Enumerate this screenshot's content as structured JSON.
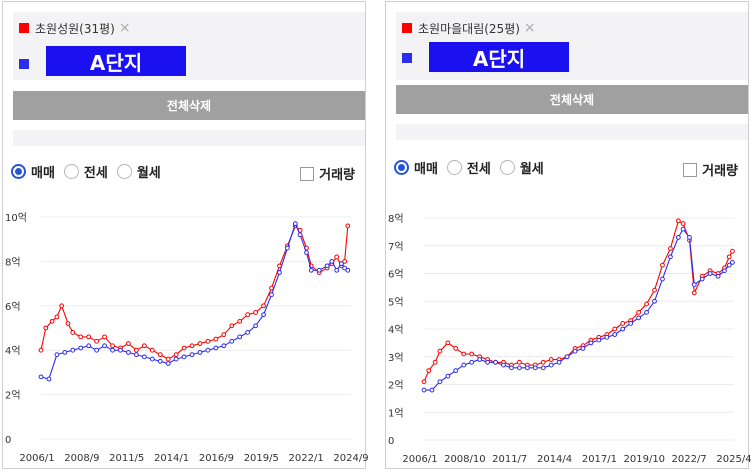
{
  "delete_all_label": "전체삭제",
  "remove_symbol": "×",
  "mask_label": "A단지",
  "radio_options": [
    "매매",
    "전세",
    "월세"
  ],
  "volume_label": "거래량",
  "colors": {
    "red": "#ff0000",
    "blue": "#2d2df0",
    "mask": "#1a10f0",
    "selected": "#2653d9"
  },
  "left": {
    "complex_name": "초원성원(31평)",
    "hidden_suffix": ")",
    "chart_data": {
      "type": "line",
      "y_ticks": [
        "0",
        "2억",
        "4억",
        "6억",
        "8억",
        "10억"
      ],
      "ylim": [
        0,
        10
      ],
      "x_ticks": [
        "2006/1",
        "2008/9",
        "2011/5",
        "2014/1",
        "2016/9",
        "2019/5",
        "2022/1",
        "2024/9"
      ],
      "xlim": [
        2006.0,
        2025.5
      ],
      "series": [
        {
          "name": "초원성원(31평)",
          "color": "#ff0000",
          "points": [
            [
              2006.0,
              4.0
            ],
            [
              2006.3,
              5.0
            ],
            [
              2006.7,
              5.3
            ],
            [
              2007.0,
              5.5
            ],
            [
              2007.3,
              6.0
            ],
            [
              2007.7,
              5.2
            ],
            [
              2008.0,
              4.8
            ],
            [
              2008.5,
              4.6
            ],
            [
              2009.0,
              4.6
            ],
            [
              2009.5,
              4.4
            ],
            [
              2010.0,
              4.6
            ],
            [
              2010.5,
              4.2
            ],
            [
              2011.0,
              4.1
            ],
            [
              2011.5,
              4.3
            ],
            [
              2012.0,
              4.0
            ],
            [
              2012.5,
              4.2
            ],
            [
              2013.0,
              4.0
            ],
            [
              2013.5,
              3.8
            ],
            [
              2014.0,
              3.6
            ],
            [
              2014.5,
              3.8
            ],
            [
              2015.0,
              4.1
            ],
            [
              2015.5,
              4.2
            ],
            [
              2016.0,
              4.3
            ],
            [
              2016.5,
              4.4
            ],
            [
              2017.0,
              4.5
            ],
            [
              2017.5,
              4.7
            ],
            [
              2018.0,
              5.1
            ],
            [
              2018.5,
              5.3
            ],
            [
              2019.0,
              5.6
            ],
            [
              2019.5,
              5.7
            ],
            [
              2020.0,
              6.0
            ],
            [
              2020.5,
              6.8
            ],
            [
              2021.0,
              7.8
            ],
            [
              2021.5,
              8.7
            ],
            [
              2022.0,
              9.6
            ],
            [
              2022.3,
              9.4
            ],
            [
              2022.7,
              8.6
            ],
            [
              2023.0,
              7.8
            ],
            [
              2023.5,
              7.5
            ],
            [
              2024.0,
              7.7
            ],
            [
              2024.3,
              7.9
            ],
            [
              2024.6,
              8.2
            ],
            [
              2024.9,
              7.8
            ],
            [
              2025.1,
              8.0
            ],
            [
              2025.3,
              9.6
            ]
          ]
        },
        {
          "name": "",
          "color": "#2d2df0",
          "points": [
            [
              2006.0,
              2.8
            ],
            [
              2006.5,
              2.7
            ],
            [
              2007.0,
              3.8
            ],
            [
              2007.5,
              3.9
            ],
            [
              2008.0,
              4.0
            ],
            [
              2008.5,
              4.1
            ],
            [
              2009.0,
              4.2
            ],
            [
              2009.5,
              4.0
            ],
            [
              2010.0,
              4.2
            ],
            [
              2010.5,
              4.0
            ],
            [
              2011.0,
              4.0
            ],
            [
              2011.5,
              3.9
            ],
            [
              2012.0,
              3.8
            ],
            [
              2012.5,
              3.7
            ],
            [
              2013.0,
              3.6
            ],
            [
              2013.5,
              3.5
            ],
            [
              2014.0,
              3.4
            ],
            [
              2014.5,
              3.6
            ],
            [
              2015.0,
              3.7
            ],
            [
              2015.5,
              3.8
            ],
            [
              2016.0,
              3.9
            ],
            [
              2016.5,
              4.0
            ],
            [
              2017.0,
              4.1
            ],
            [
              2017.5,
              4.2
            ],
            [
              2018.0,
              4.4
            ],
            [
              2018.5,
              4.6
            ],
            [
              2019.0,
              4.8
            ],
            [
              2019.5,
              5.1
            ],
            [
              2020.0,
              5.6
            ],
            [
              2020.5,
              6.5
            ],
            [
              2021.0,
              7.5
            ],
            [
              2021.5,
              8.6
            ],
            [
              2022.0,
              9.7
            ],
            [
              2022.3,
              9.2
            ],
            [
              2022.7,
              8.4
            ],
            [
              2023.0,
              7.6
            ],
            [
              2023.5,
              7.6
            ],
            [
              2024.0,
              7.8
            ],
            [
              2024.3,
              8.0
            ],
            [
              2024.6,
              7.6
            ],
            [
              2024.9,
              7.9
            ],
            [
              2025.1,
              7.7
            ],
            [
              2025.3,
              7.6
            ]
          ]
        }
      ]
    }
  },
  "right": {
    "complex_name": "초원마을대림(25평)",
    "hidden_suffix": ")",
    "chart_data": {
      "type": "line",
      "y_ticks": [
        "0",
        "1억",
        "2억",
        "3억",
        "4억",
        "5억",
        "6억",
        "7억",
        "8억"
      ],
      "ylim": [
        0,
        8
      ],
      "x_ticks": [
        "2006/1",
        "2008/10",
        "2011/7",
        "2014/4",
        "2017/1",
        "2019/10",
        "2022/7",
        "2025/4"
      ],
      "xlim": [
        2006.0,
        2025.5
      ],
      "series": [
        {
          "name": "초원마을대림(25평)",
          "color": "#ff0000",
          "points": [
            [
              2006.0,
              2.1
            ],
            [
              2006.3,
              2.5
            ],
            [
              2006.7,
              2.8
            ],
            [
              2007.0,
              3.2
            ],
            [
              2007.5,
              3.5
            ],
            [
              2008.0,
              3.3
            ],
            [
              2008.5,
              3.1
            ],
            [
              2009.0,
              3.1
            ],
            [
              2009.5,
              3.0
            ],
            [
              2010.0,
              2.9
            ],
            [
              2010.5,
              2.8
            ],
            [
              2011.0,
              2.8
            ],
            [
              2011.5,
              2.7
            ],
            [
              2012.0,
              2.8
            ],
            [
              2012.5,
              2.7
            ],
            [
              2013.0,
              2.7
            ],
            [
              2013.5,
              2.8
            ],
            [
              2014.0,
              2.9
            ],
            [
              2014.5,
              2.9
            ],
            [
              2015.0,
              3.0
            ],
            [
              2015.5,
              3.3
            ],
            [
              2016.0,
              3.4
            ],
            [
              2016.5,
              3.6
            ],
            [
              2017.0,
              3.7
            ],
            [
              2017.5,
              3.8
            ],
            [
              2018.0,
              4.0
            ],
            [
              2018.5,
              4.2
            ],
            [
              2019.0,
              4.3
            ],
            [
              2019.5,
              4.6
            ],
            [
              2020.0,
              4.9
            ],
            [
              2020.5,
              5.4
            ],
            [
              2021.0,
              6.3
            ],
            [
              2021.5,
              6.9
            ],
            [
              2022.0,
              7.9
            ],
            [
              2022.3,
              7.8
            ],
            [
              2022.7,
              7.2
            ],
            [
              2023.0,
              5.3
            ],
            [
              2023.5,
              5.9
            ],
            [
              2024.0,
              6.1
            ],
            [
              2024.5,
              6.0
            ],
            [
              2024.9,
              6.2
            ],
            [
              2025.2,
              6.6
            ],
            [
              2025.4,
              6.8
            ]
          ]
        },
        {
          "name": "",
          "color": "#2d2df0",
          "points": [
            [
              2006.0,
              1.8
            ],
            [
              2006.5,
              1.8
            ],
            [
              2007.0,
              2.1
            ],
            [
              2007.5,
              2.3
            ],
            [
              2008.0,
              2.5
            ],
            [
              2008.5,
              2.7
            ],
            [
              2009.0,
              2.8
            ],
            [
              2009.5,
              2.9
            ],
            [
              2010.0,
              2.8
            ],
            [
              2010.5,
              2.8
            ],
            [
              2011.0,
              2.7
            ],
            [
              2011.5,
              2.6
            ],
            [
              2012.0,
              2.6
            ],
            [
              2012.5,
              2.6
            ],
            [
              2013.0,
              2.6
            ],
            [
              2013.5,
              2.6
            ],
            [
              2014.0,
              2.7
            ],
            [
              2014.5,
              2.8
            ],
            [
              2015.0,
              3.0
            ],
            [
              2015.5,
              3.2
            ],
            [
              2016.0,
              3.3
            ],
            [
              2016.5,
              3.5
            ],
            [
              2017.0,
              3.6
            ],
            [
              2017.5,
              3.7
            ],
            [
              2018.0,
              3.8
            ],
            [
              2018.5,
              4.0
            ],
            [
              2019.0,
              4.2
            ],
            [
              2019.5,
              4.4
            ],
            [
              2020.0,
              4.6
            ],
            [
              2020.5,
              5.0
            ],
            [
              2021.0,
              5.8
            ],
            [
              2021.5,
              6.6
            ],
            [
              2022.0,
              7.3
            ],
            [
              2022.3,
              7.6
            ],
            [
              2022.7,
              7.3
            ],
            [
              2023.0,
              5.6
            ],
            [
              2023.5,
              5.8
            ],
            [
              2024.0,
              6.0
            ],
            [
              2024.5,
              5.9
            ],
            [
              2024.9,
              6.1
            ],
            [
              2025.2,
              6.3
            ],
            [
              2025.4,
              6.4
            ]
          ]
        }
      ]
    }
  }
}
